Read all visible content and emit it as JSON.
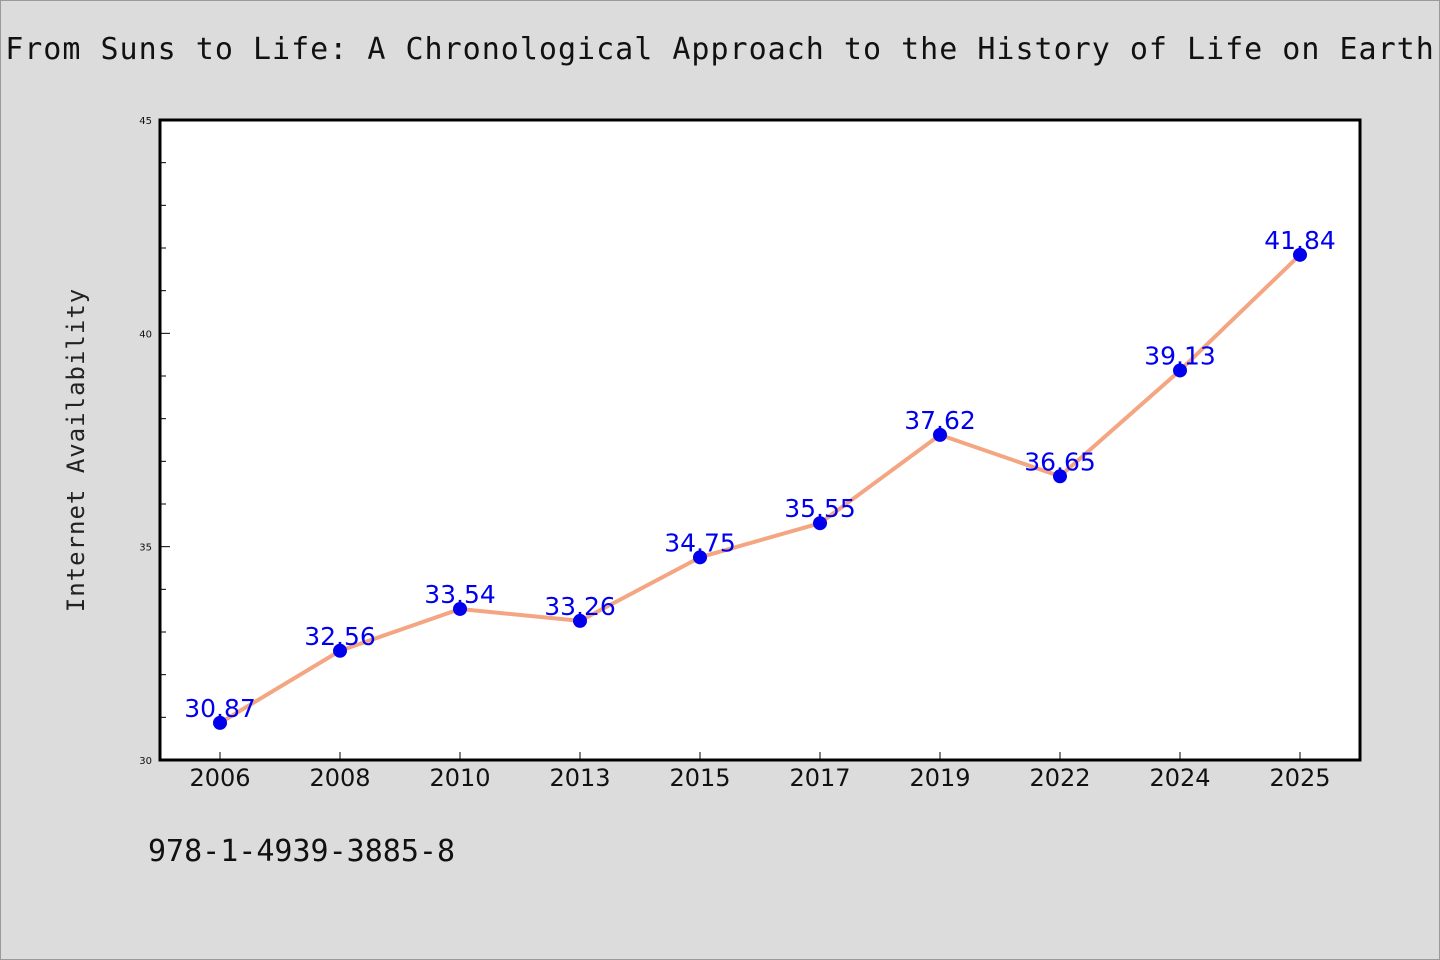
{
  "chart_data": {
    "type": "line",
    "title": "From Suns to Life: A Chronological Approach to the History of Life on Earth",
    "xlabel": "",
    "ylabel": "Internet Availability",
    "categories": [
      "2006",
      "2008",
      "2010",
      "2013",
      "2015",
      "2017",
      "2019",
      "2022",
      "2024",
      "2025"
    ],
    "series": [
      {
        "values": [
          30.87,
          32.56,
          33.54,
          33.26,
          34.75,
          35.55,
          37.62,
          36.65,
          39.13,
          41.84
        ]
      }
    ],
    "data_labels": [
      "30.87",
      "32.56",
      "33.54",
      "33.26",
      "34.75",
      "35.55",
      "37.62",
      "36.65",
      "39.13",
      "41.84"
    ],
    "ylim": [
      30,
      45
    ],
    "y_ticks": [
      30,
      35,
      40,
      45
    ],
    "y_minor_step": 1,
    "grid": false,
    "line_color": "#f4a582",
    "marker_color": "#0000ee",
    "label_color": "#0000ee"
  },
  "footer": {
    "isbn": "978-1-4939-3885-8"
  }
}
